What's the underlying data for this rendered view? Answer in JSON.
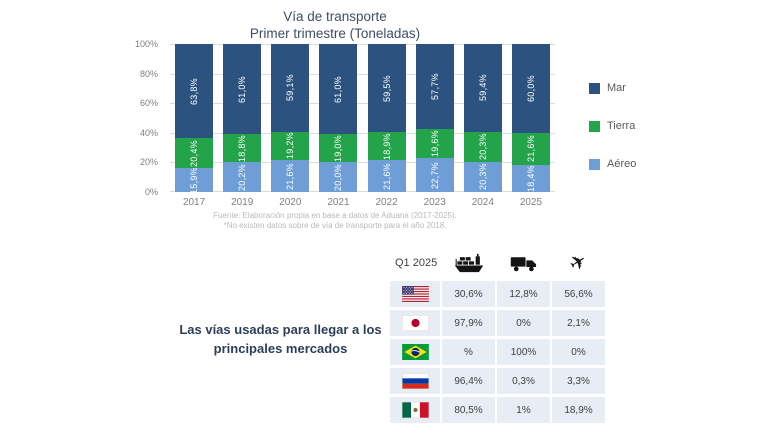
{
  "title": {
    "line1": "Vía de transporte",
    "line2": "Primer trimestre (Toneladas)"
  },
  "chart_data": [
    {
      "type": "bar",
      "stacked": true,
      "percent": true,
      "title": "Vía de transporte — Primer trimestre (Toneladas)",
      "categories": [
        "2017",
        "2019",
        "2020",
        "2021",
        "2022",
        "2023",
        "2024",
        "2025"
      ],
      "series": [
        {
          "key": "aereo",
          "name": "Aéreo",
          "color": "#6f9ed7",
          "values": [
            15.9,
            20.2,
            21.6,
            20.0,
            21.6,
            22.7,
            20.3,
            18.4
          ],
          "labels": [
            "15,9%",
            "20,2%",
            "21,6%",
            "20,0%",
            "21,6%",
            "22,7%",
            "20,3%",
            "18,4%"
          ]
        },
        {
          "key": "tierra",
          "name": "Tierra",
          "color": "#23a44a",
          "values": [
            20.4,
            18.8,
            19.2,
            19.0,
            18.9,
            19.6,
            20.3,
            21.6
          ],
          "labels": [
            "20,4%",
            "18,8%",
            "19,2%",
            "19,0%",
            "18,9%",
            "19,6%",
            "20,3%",
            "21,6%"
          ]
        },
        {
          "key": "mar",
          "name": "Mar",
          "color": "#2c5380",
          "values": [
            63.8,
            61.0,
            59.1,
            61.0,
            59.5,
            57.7,
            59.4,
            60.0
          ],
          "labels": [
            "63,8%",
            "61,0%",
            "59,1%",
            "61,0%",
            "59,5%",
            "57,7%",
            "59,4%",
            "60,0%"
          ]
        }
      ],
      "legend": [
        {
          "key": "mar",
          "label": "Mar",
          "color": "#2c5380"
        },
        {
          "key": "tierra",
          "label": "Tierra",
          "color": "#23a44a"
        },
        {
          "key": "aereo",
          "label": "Aéreo",
          "color": "#6f9ed7"
        }
      ],
      "legend_position": "right",
      "y_ticks": [
        {
          "label": "0%",
          "value": 0
        },
        {
          "label": "20%",
          "value": 20
        },
        {
          "label": "40%",
          "value": 40
        },
        {
          "label": "60%",
          "value": 60
        },
        {
          "label": "80%",
          "value": 80
        },
        {
          "label": "100%",
          "value": 100
        }
      ],
      "ylim": [
        0,
        100
      ],
      "grid": true
    },
    {
      "type": "table",
      "title": "Q1 2025",
      "column_icons": [
        "ship-icon",
        "truck-icon",
        "plane-icon"
      ],
      "rows": [
        {
          "flag": "usa",
          "values": [
            "30,6%",
            "12,8%",
            "56,6%"
          ]
        },
        {
          "flag": "japan",
          "values": [
            "97,9%",
            "0%",
            "2,1%"
          ]
        },
        {
          "flag": "brazil",
          "values": [
            "%",
            "100%",
            "0%"
          ]
        },
        {
          "flag": "russia",
          "values": [
            "96,4%",
            "0,3%",
            "3,3%"
          ]
        },
        {
          "flag": "mexico",
          "values": [
            "80,5%",
            "1%",
            "18,9%"
          ]
        }
      ]
    }
  ],
  "footnote": {
    "line1": "Fuente: Elaboración propia en base a datos de Aduana (2017-2025).",
    "line2": "*No existen datos sobre de vía de transporte para el año 2018."
  },
  "bottom": {
    "caption": "Las vías usadas para llegar a los principales mercados",
    "table_period_label": "Q1 2025"
  }
}
